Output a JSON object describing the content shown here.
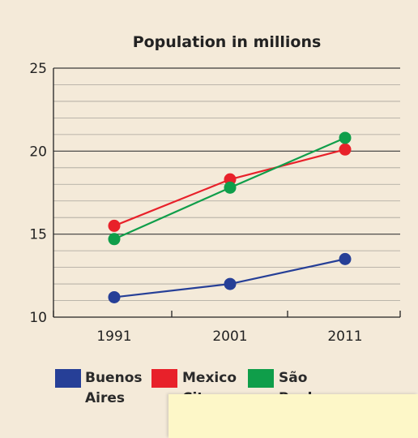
{
  "chart_data": {
    "type": "line",
    "title": "Population in millions",
    "xlabel": "",
    "ylabel": "",
    "categories": [
      "1991",
      "2001",
      "2011"
    ],
    "y_ticks": [
      "10",
      "15",
      "20",
      "25"
    ],
    "ylim": [
      10,
      25
    ],
    "grid": true,
    "legend_position": "bottom",
    "series": [
      {
        "name": "Buenos Aires",
        "values": [
          11.2,
          12.0,
          13.5
        ],
        "color": "#263f97"
      },
      {
        "name": "Mexico City",
        "values": [
          15.5,
          18.3,
          20.1
        ],
        "color": "#e8212a"
      },
      {
        "name": "São Paulo",
        "values": [
          14.7,
          17.8,
          20.8
        ],
        "color": "#0f9e4a"
      }
    ]
  },
  "legend": [
    {
      "line1": "Buenos",
      "line2": "Aires",
      "color": "#263f97"
    },
    {
      "line1": "Mexico",
      "line2": "City",
      "color": "#e8212a"
    },
    {
      "line1": "São",
      "line2": "Paulo",
      "color": "#0f9e4a"
    }
  ],
  "colors": {
    "panel_bg": "#f4ead9",
    "note_bg": "#fdf7c8",
    "major_grid": "#3a3a3a",
    "minor_grid": "#a8a39a"
  }
}
